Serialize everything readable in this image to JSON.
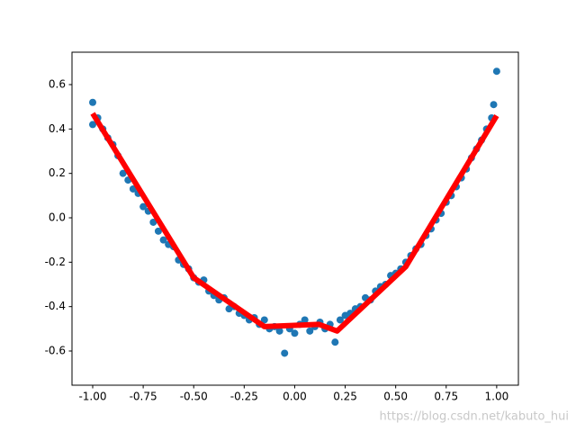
{
  "chart_data": {
    "type": "scatter",
    "xlim": [
      -1.1025,
      1.1075
    ],
    "ylim": [
      -0.754,
      0.746
    ],
    "xticks": [
      {
        "value": -1,
        "label": "-1.00"
      },
      {
        "value": -0.75,
        "label": "-0.75"
      },
      {
        "value": -0.5,
        "label": "-0.50"
      },
      {
        "value": -0.25,
        "label": "-0.25"
      },
      {
        "value": 0,
        "label": "0.00"
      },
      {
        "value": 0.25,
        "label": "0.25"
      },
      {
        "value": 0.5,
        "label": "0.50"
      },
      {
        "value": 0.75,
        "label": "0.75"
      },
      {
        "value": 1,
        "label": "1.00"
      }
    ],
    "yticks": [
      -0.6,
      -0.4,
      -0.2,
      {
        "value": 0,
        "label": "0.0"
      },
      0.2,
      0.4,
      0.6
    ],
    "series": [
      {
        "kind": "scatter",
        "color": "#1f77b4",
        "x": [
          -1.0,
          -0.975,
          -0.95,
          -0.925,
          -0.9,
          -0.875,
          -0.85,
          -0.825,
          -0.8,
          -0.775,
          -0.75,
          -0.725,
          -0.7,
          -0.675,
          -0.65,
          -0.625,
          -0.6,
          -0.575,
          -0.55,
          -0.525,
          -0.5,
          -0.475,
          -0.45,
          -0.425,
          -0.4,
          -0.375,
          -0.35,
          -0.325,
          -0.3,
          -0.275,
          -0.25,
          -0.225,
          -0.2,
          -0.175,
          -0.15,
          -0.125,
          -0.1,
          -0.075,
          -0.05,
          -0.025,
          0.0,
          0.025,
          0.05,
          0.075,
          0.1,
          0.125,
          0.15,
          0.175,
          0.2,
          0.225,
          0.25,
          0.275,
          0.3,
          0.325,
          0.35,
          0.375,
          0.4,
          0.425,
          0.45,
          0.475,
          0.5,
          0.525,
          0.55,
          0.575,
          0.6,
          0.625,
          0.65,
          0.675,
          0.7,
          0.725,
          0.75,
          0.775,
          0.8,
          0.825,
          0.85,
          0.875,
          0.9,
          0.925,
          0.95,
          0.975,
          1.0,
          -1.0,
          0.985
        ],
        "values": [
          0.42,
          0.45,
          0.4,
          0.36,
          0.33,
          0.28,
          0.2,
          0.17,
          0.13,
          0.11,
          0.05,
          0.03,
          -0.02,
          -0.06,
          -0.1,
          -0.12,
          -0.13,
          -0.19,
          -0.21,
          -0.23,
          -0.27,
          -0.29,
          -0.28,
          -0.33,
          -0.35,
          -0.37,
          -0.36,
          -0.41,
          -0.4,
          -0.43,
          -0.44,
          -0.46,
          -0.45,
          -0.48,
          -0.46,
          -0.5,
          -0.49,
          -0.51,
          -0.61,
          -0.5,
          -0.52,
          -0.48,
          -0.46,
          -0.51,
          -0.49,
          -0.47,
          -0.5,
          -0.48,
          -0.56,
          -0.46,
          -0.44,
          -0.43,
          -0.41,
          -0.4,
          -0.36,
          -0.37,
          -0.33,
          -0.31,
          -0.3,
          -0.26,
          -0.25,
          -0.23,
          -0.2,
          -0.17,
          -0.14,
          -0.12,
          -0.08,
          -0.05,
          -0.01,
          0.02,
          0.07,
          0.1,
          0.14,
          0.18,
          0.22,
          0.27,
          0.31,
          0.35,
          0.4,
          0.45,
          0.66,
          0.52,
          0.51
        ]
      },
      {
        "kind": "line",
        "color": "#ff0000",
        "x": [
          -1.0,
          -0.5,
          -0.15,
          0.12,
          0.21,
          0.55,
          1.0
        ],
        "values": [
          0.47,
          -0.27,
          -0.49,
          -0.48,
          -0.51,
          -0.22,
          0.46
        ]
      }
    ],
    "watermark": "https://blog.csdn.net/kabuto_hui"
  }
}
